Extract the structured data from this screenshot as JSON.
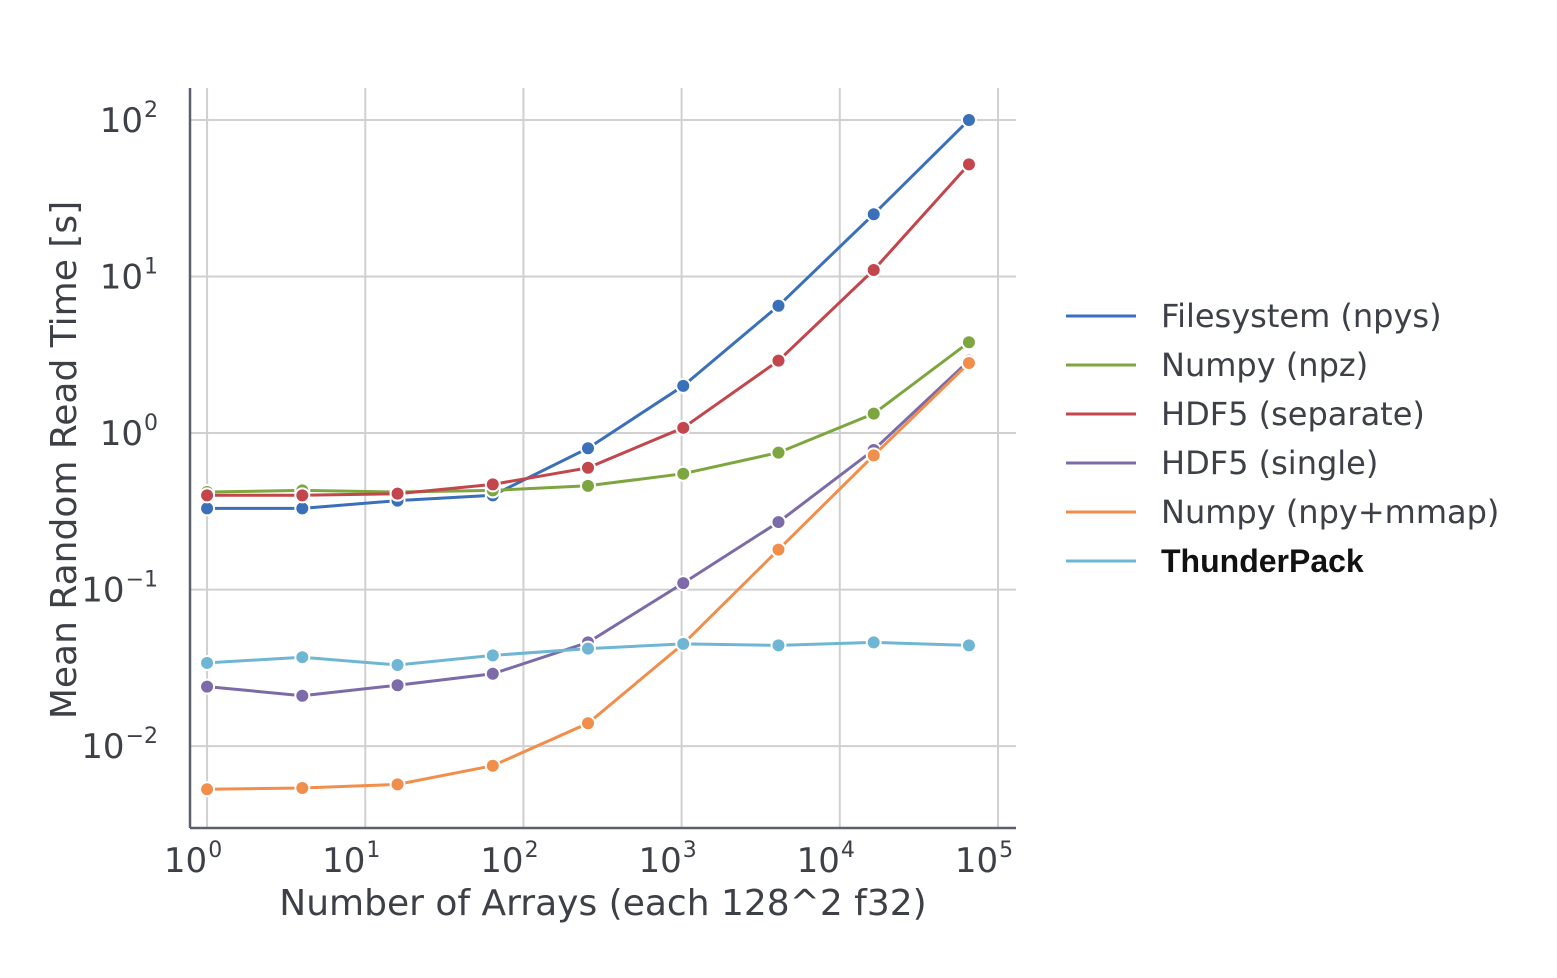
{
  "chart_data": {
    "type": "line",
    "title": "",
    "xlabel": "Number of Arrays (each 128^2 f32)",
    "ylabel": "Mean Random Read Time [s]",
    "xscale": "log",
    "yscale": "log",
    "xlim": [
      0.78,
      130000
    ],
    "ylim": [
      0.003,
      160
    ],
    "grid": true,
    "legend": "right",
    "x_ticks": [
      {
        "base": "10",
        "exp": "0"
      },
      {
        "base": "10",
        "exp": "1"
      },
      {
        "base": "10",
        "exp": "2"
      },
      {
        "base": "10",
        "exp": "3"
      },
      {
        "base": "10",
        "exp": "4"
      },
      {
        "base": "10",
        "exp": "5"
      }
    ],
    "y_ticks": [
      {
        "base": "10",
        "exp": "−2"
      },
      {
        "base": "10",
        "exp": "−1"
      },
      {
        "base": "10",
        "exp": "0"
      },
      {
        "base": "10",
        "exp": "1"
      },
      {
        "base": "10",
        "exp": "2"
      }
    ],
    "x": [
      1,
      4,
      16,
      64,
      256,
      1024,
      4096,
      16384,
      65536
    ],
    "series": [
      {
        "name": "Filesystem (npys)",
        "color": "#3a6fba",
        "bold": false,
        "values": [
          0.33,
          0.33,
          0.37,
          0.4,
          0.8,
          2.0,
          6.5,
          25,
          100
        ]
      },
      {
        "name": "Numpy (npz)",
        "color": "#7ea640",
        "bold": false,
        "values": [
          0.42,
          0.43,
          0.42,
          0.43,
          0.46,
          0.55,
          0.75,
          1.33,
          3.8
        ]
      },
      {
        "name": "HDF5 (separate)",
        "color": "#c2464c",
        "bold": false,
        "values": [
          0.4,
          0.4,
          0.41,
          0.47,
          0.6,
          1.08,
          2.9,
          11,
          52
        ]
      },
      {
        "name": "HDF5 (single)",
        "color": "#7d6aa8",
        "bold": false,
        "values": [
          0.024,
          0.021,
          0.0245,
          0.029,
          0.046,
          0.11,
          0.27,
          0.78,
          2.9
        ]
      },
      {
        "name": "Numpy (npy+mmap)",
        "color": "#f28e4c",
        "bold": false,
        "values": [
          0.0053,
          0.0054,
          0.0057,
          0.0075,
          0.014,
          0.045,
          0.18,
          0.72,
          2.8
        ]
      },
      {
        "name": "ThunderPack",
        "color": "#6fb6d4",
        "bold": true,
        "values": [
          0.034,
          0.037,
          0.033,
          0.038,
          0.042,
          0.045,
          0.044,
          0.046,
          0.044
        ]
      }
    ]
  }
}
